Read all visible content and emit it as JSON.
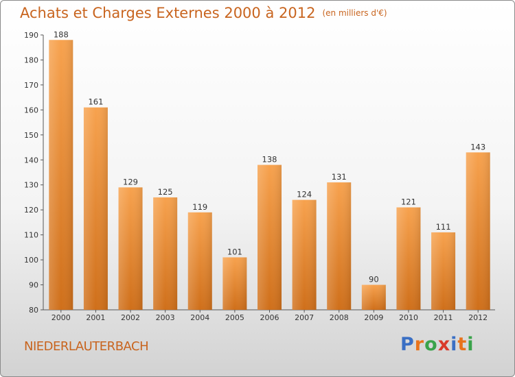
{
  "header": {
    "title": "Achats et Charges Externes 2000 à 2012",
    "unit": "(en milliers d'€)"
  },
  "footer": {
    "commune": "NIEDERLAUTERBACH",
    "logo": {
      "letters": [
        "P",
        "r",
        "o",
        "x",
        "i",
        "t",
        "i"
      ],
      "colors": [
        "#3a6fc4",
        "#e8731c",
        "#3aa34a",
        "#d93a2b",
        "#3a6fc4",
        "#e8731c",
        "#3aa34a"
      ]
    }
  },
  "chart_data": {
    "type": "bar",
    "title": "Achats et Charges Externes 2000 à 2012",
    "categories": [
      "2000",
      "2001",
      "2002",
      "2003",
      "2004",
      "2005",
      "2006",
      "2007",
      "2008",
      "2009",
      "2010",
      "2011",
      "2012"
    ],
    "values": [
      188,
      161,
      129,
      125,
      119,
      101,
      138,
      124,
      131,
      90,
      121,
      111,
      143
    ],
    "data_labels": [
      "188",
      "161",
      "129",
      "125",
      "119",
      "101",
      "138",
      "124",
      "131",
      "90",
      "121",
      "111",
      "143"
    ],
    "xlabel": "",
    "ylabel": "",
    "ylim": [
      80,
      190
    ],
    "yticks": [
      80,
      90,
      100,
      110,
      120,
      130,
      140,
      150,
      160,
      170,
      180,
      190
    ],
    "grid": false,
    "bar_color": "#e8731c",
    "legend": "none"
  }
}
